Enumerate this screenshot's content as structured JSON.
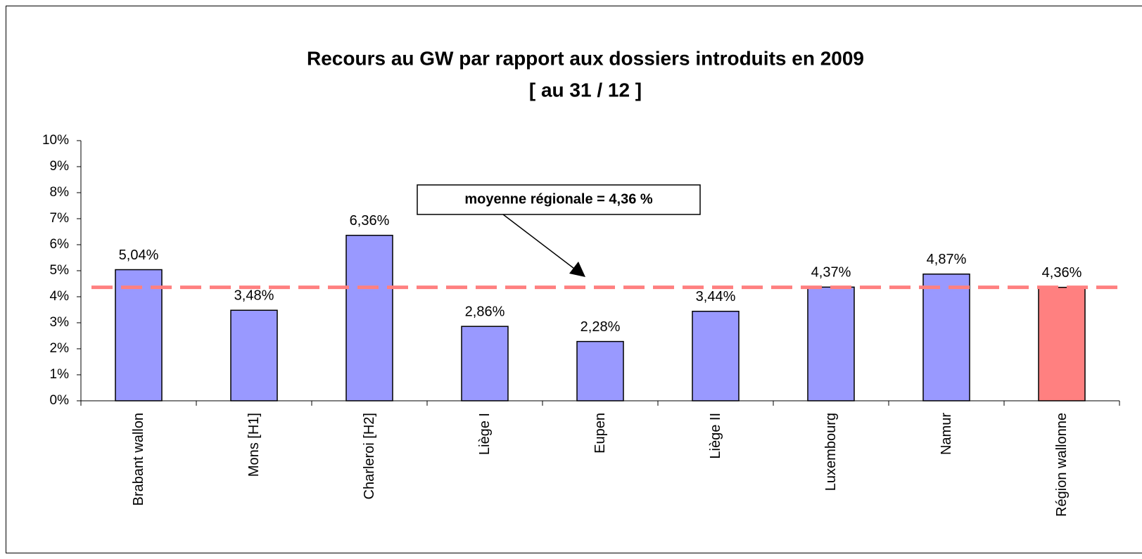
{
  "chart_data": {
    "type": "bar",
    "title": "Recours au GW par rapport aux dossiers introduits en 2009",
    "subtitle": "[ au 31 / 12 ]",
    "categories": [
      "Brabant wallon",
      "Mons [H1]",
      "Charleroi [H2]",
      "Liège I",
      "Eupen",
      "Liège II",
      "Luxembourg",
      "Namur",
      "Région wallonne"
    ],
    "values": [
      5.04,
      3.48,
      6.36,
      2.86,
      2.28,
      3.44,
      4.37,
      4.87,
      4.36
    ],
    "value_labels": [
      "5,04%",
      "3,48%",
      "6,36%",
      "2,86%",
      "2,28%",
      "3,44%",
      "4,37%",
      "4,87%",
      "4,36%"
    ],
    "colors": [
      "#9999ff",
      "#9999ff",
      "#9999ff",
      "#9999ff",
      "#9999ff",
      "#9999ff",
      "#9999ff",
      "#9999ff",
      "#ff8080"
    ],
    "ylim": [
      0,
      10
    ],
    "yticks": [
      {
        "value": 0,
        "label": "0%"
      },
      {
        "value": 1,
        "label": "1%"
      },
      {
        "value": 2,
        "label": "2%"
      },
      {
        "value": 3,
        "label": "3%"
      },
      {
        "value": 4,
        "label": "4%"
      },
      {
        "value": 5,
        "label": "5%"
      },
      {
        "value": 6,
        "label": "6%"
      },
      {
        "value": 7,
        "label": "7%"
      },
      {
        "value": 8,
        "label": "8%"
      },
      {
        "value": 9,
        "label": "9%"
      },
      {
        "value": 10,
        "label": "10%"
      }
    ],
    "reference_line": {
      "value": 4.36,
      "color": "#ff8080"
    },
    "annotation": "moyenne régionale = 4,36 %"
  }
}
